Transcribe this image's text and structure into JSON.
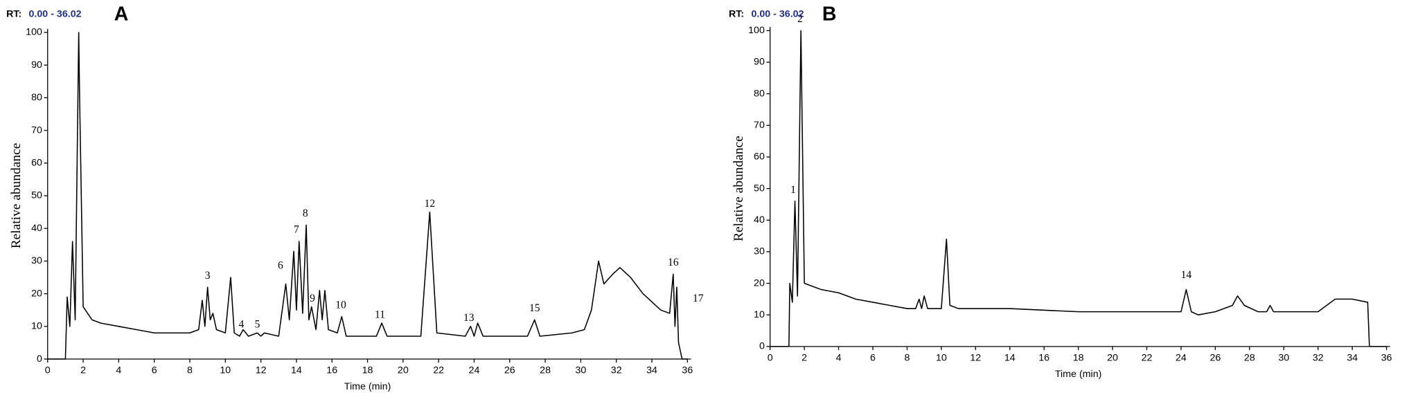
{
  "chart_data": [
    {
      "type": "line",
      "panel": "A",
      "rt_label": "RT:",
      "rt_range": "0.00 - 36.02",
      "xlabel": "Time (min)",
      "ylabel": "Relative abundance",
      "color": "#000000",
      "xlim": [
        0,
        36
      ],
      "ylim": [
        0,
        100
      ],
      "xticks": [
        0,
        2,
        4,
        6,
        8,
        10,
        12,
        14,
        16,
        18,
        20,
        22,
        24,
        26,
        28,
        30,
        32,
        34,
        36
      ],
      "yticks": [
        0,
        10,
        20,
        30,
        40,
        50,
        60,
        70,
        80,
        90,
        100
      ],
      "x": [
        0,
        1.0,
        1.1,
        1.25,
        1.4,
        1.55,
        1.75,
        1.8,
        2.0,
        2.5,
        3,
        4,
        5,
        6,
        7,
        8,
        8.5,
        8.7,
        8.85,
        9.0,
        9.15,
        9.3,
        9.5,
        10,
        10.3,
        10.5,
        10.8,
        11.0,
        11.3,
        11.8,
        12,
        12.2,
        13,
        13.4,
        13.6,
        13.85,
        14.0,
        14.15,
        14.35,
        14.55,
        14.7,
        14.85,
        15.1,
        15.3,
        15.45,
        15.6,
        15.8,
        16.3,
        16.55,
        16.8,
        18.5,
        18.8,
        19.1,
        21,
        21.5,
        21.9,
        23.5,
        23.8,
        24.0,
        24.2,
        24.5,
        27,
        27.4,
        27.7,
        29.5,
        30.2,
        30.6,
        31.0,
        31.3,
        31.8,
        32.2,
        32.8,
        33.5,
        34.5,
        35,
        35.2,
        35.3,
        35.4,
        35.5,
        35.7,
        36
      ],
      "values": [
        0,
        0,
        19,
        10,
        36,
        12,
        100,
        80,
        16,
        12,
        11,
        10,
        9,
        8,
        8,
        8,
        9,
        18,
        10,
        22,
        12,
        14,
        9,
        8,
        25,
        8,
        7,
        9,
        7,
        8,
        7,
        8,
        7,
        23,
        12,
        33,
        15,
        36,
        14,
        41,
        12,
        16,
        9,
        21,
        12,
        21,
        9,
        8,
        13,
        7,
        7,
        11,
        7,
        7,
        45,
        8,
        7,
        10,
        7,
        11,
        7,
        7,
        12,
        7,
        8,
        9,
        15,
        30,
        23,
        26,
        28,
        25,
        20,
        15,
        14,
        26,
        10,
        22,
        5,
        0,
        0
      ],
      "annotations": [
        {
          "text": "3",
          "x": 9.0,
          "y": 24
        },
        {
          "text": "4",
          "x": 10.9,
          "y": 9
        },
        {
          "text": "5",
          "x": 11.8,
          "y": 9
        },
        {
          "text": "6",
          "x": 13.1,
          "y": 27
        },
        {
          "text": "7",
          "x": 14.0,
          "y": 38
        },
        {
          "text": "8",
          "x": 14.5,
          "y": 43
        },
        {
          "text": "9",
          "x": 14.9,
          "y": 17
        },
        {
          "text": "10",
          "x": 16.5,
          "y": 15
        },
        {
          "text": "11",
          "x": 18.7,
          "y": 12
        },
        {
          "text": "12",
          "x": 21.5,
          "y": 46
        },
        {
          "text": "13",
          "x": 23.7,
          "y": 11
        },
        {
          "text": "15",
          "x": 27.4,
          "y": 14
        },
        {
          "text": "16",
          "x": 35.2,
          "y": 28
        },
        {
          "text": "17",
          "x": 36.6,
          "y": 17
        }
      ]
    },
    {
      "type": "line",
      "panel": "B",
      "rt_label": "RT:",
      "rt_range": "0.00 - 36.02",
      "xlabel": "Time (min)",
      "ylabel": "Relative abundance",
      "color": "#000000",
      "xlim": [
        0,
        36
      ],
      "ylim": [
        0,
        100
      ],
      "xticks": [
        0,
        2,
        4,
        6,
        8,
        10,
        12,
        14,
        16,
        18,
        20,
        22,
        24,
        26,
        28,
        30,
        32,
        34,
        36
      ],
      "yticks": [
        0,
        10,
        20,
        30,
        40,
        50,
        60,
        70,
        80,
        90,
        100
      ],
      "x": [
        0,
        1.1,
        1.15,
        1.3,
        1.45,
        1.6,
        1.8,
        2.0,
        2.5,
        3,
        4,
        5,
        6,
        7,
        8,
        8.5,
        8.7,
        8.85,
        9.0,
        9.2,
        10,
        10.3,
        10.5,
        11,
        14,
        18,
        23,
        24,
        24.3,
        24.6,
        25,
        26,
        27,
        27.3,
        27.7,
        28.5,
        29,
        29.2,
        29.4,
        32,
        32.5,
        33,
        34,
        34.9,
        35,
        36
      ],
      "values": [
        0,
        0,
        20,
        14,
        46,
        16,
        100,
        20,
        19,
        18,
        17,
        15,
        14,
        13,
        12,
        12,
        15,
        12,
        16,
        12,
        12,
        34,
        13,
        12,
        12,
        11,
        11,
        11,
        18,
        11,
        10,
        11,
        13,
        16,
        13,
        11,
        11,
        13,
        11,
        11,
        13,
        15,
        15,
        14,
        0,
        0
      ],
      "annotations": [
        {
          "text": "1",
          "x": 1.35,
          "y": 48
        },
        {
          "text": "2",
          "x": 1.75,
          "y": 102
        },
        {
          "text": "14",
          "x": 24.3,
          "y": 21
        }
      ]
    }
  ]
}
